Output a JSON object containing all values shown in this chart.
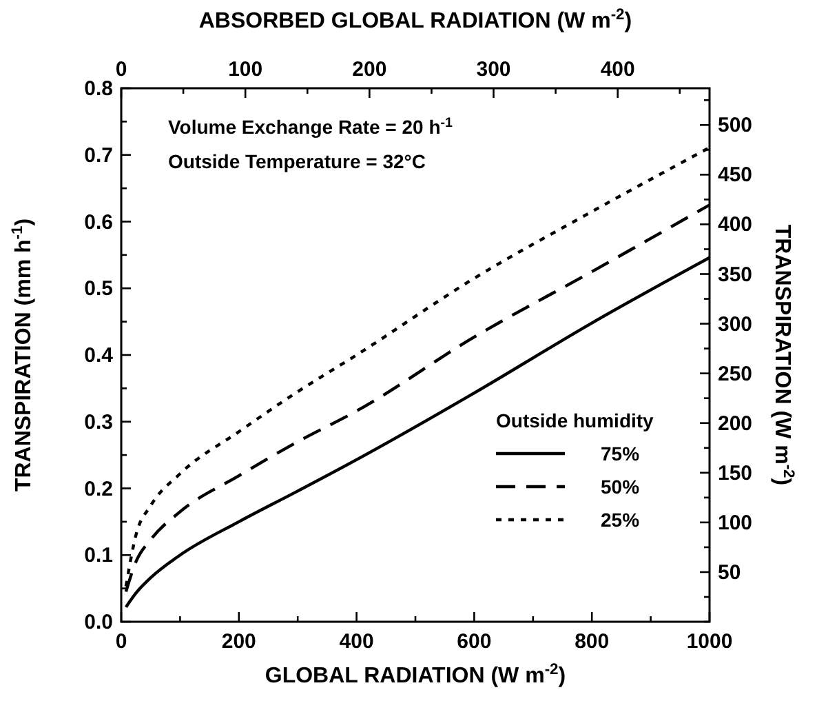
{
  "chart_data": {
    "type": "line",
    "xlabel": "GLOBAL RADIATION  (W m$^{-2}$)",
    "ylabel": "TRANSPIRATION  (mm h$^{-1}$)",
    "y2label": "TRANSPIRATION  (W m$^{-2}$)",
    "x2label": "ABSORBED GLOBAL RADIATION  (W m$^{-2}$)",
    "legend_title": "Outside humidity",
    "legend": "bottom right",
    "annotations": [
      "Volume Exchange Rate = 20 h$^{-1}$",
      "Outside Temperature = 32°C"
    ],
    "x": [
      8,
      25,
      50,
      100,
      200,
      300,
      400,
      600,
      800,
      1000
    ],
    "series": [
      {
        "name": "75%",
        "color": "#000000",
        "line_style": "solid",
        "values": [
          0.022,
          0.043,
          0.066,
          0.1,
          0.15,
          0.196,
          0.243,
          0.343,
          0.448,
          0.546
        ]
      },
      {
        "name": "50%",
        "color": "#000000",
        "line_style": "dashed",
        "values": [
          0.045,
          0.09,
          0.123,
          0.165,
          0.219,
          0.27,
          0.316,
          0.427,
          0.525,
          0.625
        ]
      },
      {
        "name": "25%",
        "color": "#000000",
        "line_style": "dotted",
        "values": [
          0.053,
          0.13,
          0.174,
          0.222,
          0.285,
          0.345,
          0.4,
          0.515,
          0.615,
          0.711
        ]
      }
    ],
    "xlim": [
      0,
      1000
    ],
    "xticks": [
      0,
      {
        "value": 100,
        "label": null
      },
      200,
      {
        "value": 300,
        "label": null
      },
      400,
      {
        "value": 500,
        "label": null
      },
      600,
      {
        "value": 700,
        "label": null
      },
      800,
      {
        "value": 900,
        "label": null
      },
      1000
    ],
    "ylim": [
      0,
      0.8
    ],
    "yticks": [
      "0.0",
      {
        "value": 0.05,
        "label": null
      },
      0.1,
      {
        "value": 0.15,
        "label": null
      },
      0.2,
      {
        "value": 0.25,
        "label": null
      },
      0.3,
      {
        "value": 0.35,
        "label": null
      },
      0.4,
      {
        "value": 0.45,
        "label": null
      },
      0.5,
      {
        "value": 0.55,
        "label": null
      },
      0.6,
      {
        "value": 0.65,
        "label": null
      },
      0.7,
      {
        "value": 0.75,
        "label": null
      },
      0.8
    ],
    "x2lim": [
      0,
      474
    ],
    "x2ticks": [
      0,
      {
        "value": 50,
        "label": null
      },
      100,
      {
        "value": 150,
        "label": null
      },
      200,
      {
        "value": 250,
        "label": null
      },
      300,
      {
        "value": 350,
        "label": null
      },
      400,
      {
        "value": 450,
        "label": null
      }
    ],
    "y2lim": [
      0,
      537
    ],
    "y2ticks": [
      {
        "value": 0,
        "label": null
      },
      {
        "value": 25,
        "label": null
      },
      50,
      {
        "value": 75,
        "label": null
      },
      100,
      {
        "value": 125,
        "label": null
      },
      150,
      {
        "value": 175,
        "label": null
      },
      200,
      {
        "value": 225,
        "label": null
      },
      250,
      {
        "value": 275,
        "label": null
      },
      300,
      {
        "value": 325,
        "label": null
      },
      350,
      {
        "value": 375,
        "label": null
      },
      400,
      {
        "value": 425,
        "label": null
      },
      450,
      {
        "value": 475,
        "label": null
      },
      500,
      {
        "value": 525,
        "label": null
      }
    ],
    "grid": false
  }
}
